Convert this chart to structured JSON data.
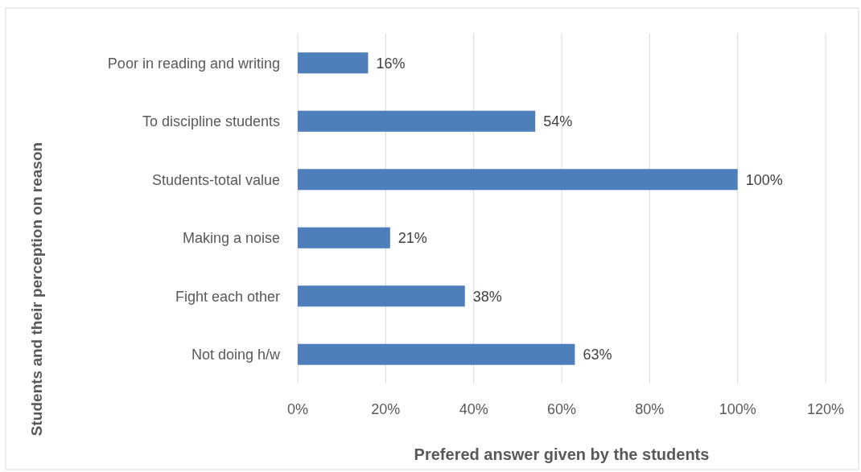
{
  "chart_data": {
    "type": "bar",
    "orientation": "horizontal",
    "xlabel": "Prefered answer given by the students",
    "ylabel": "Students and their perception on reason",
    "categories": [
      "Poor in reading and writing",
      "To discipline students",
      "Students-total value",
      "Making a noise",
      "Fight each other",
      "Not doing h/w"
    ],
    "values": [
      16,
      54,
      100,
      21,
      38,
      63
    ],
    "value_labels": [
      "16%",
      "54%",
      "100%",
      "21%",
      "38%",
      "63%"
    ],
    "color": "#4e7fbb",
    "xlim": [
      0,
      120
    ],
    "xticks": [
      {
        "value": 0,
        "label": "0%"
      },
      {
        "value": 20,
        "label": "20%"
      },
      {
        "value": 40,
        "label": "40%"
      },
      {
        "value": 60,
        "label": "60%"
      },
      {
        "value": 80,
        "label": "80%"
      },
      {
        "value": 100,
        "label": "100%"
      },
      {
        "value": 120,
        "label": "120%"
      }
    ],
    "grid": "x"
  }
}
